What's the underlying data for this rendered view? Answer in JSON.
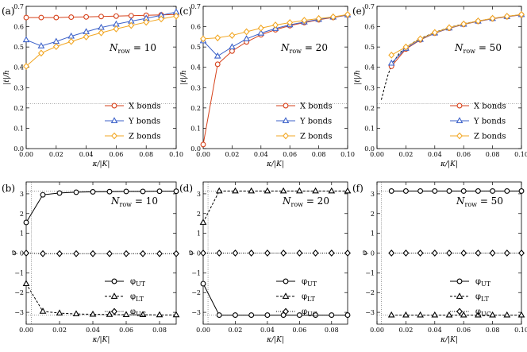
{
  "colors": {
    "x_bonds": "#d6421b",
    "y_bonds": "#3d62c9",
    "z_bonds": "#f2a724",
    "axis": "#000000"
  },
  "chart_data": [
    {
      "id": "a",
      "panel_label": "(a)",
      "type": "line",
      "xlabel": "κ/|K|",
      "ylabel": "|t|/h",
      "xlim": [
        0,
        0.1
      ],
      "ylim": [
        0,
        0.7
      ],
      "xticks": [
        0,
        0.02,
        0.04,
        0.06,
        0.08,
        0.1
      ],
      "xtick_labels": [
        "0.00",
        "0.02",
        "0.04",
        "0.06",
        "0.08",
        "0.10"
      ],
      "yticks": [
        0,
        0.1,
        0.2,
        0.3,
        0.4,
        0.5,
        0.6,
        0.7
      ],
      "ytick_labels": [
        "0.0",
        "0.1",
        "0.2",
        "0.3",
        "0.4",
        "0.5",
        "0.6",
        "0.7"
      ],
      "annotation": {
        "base": "N",
        "sub": "row",
        "rest": " = 10"
      },
      "hlines": [
        {
          "y": 0.22,
          "style": "dotted"
        }
      ],
      "legend": [
        "X bonds",
        "Y bonds",
        "Z bonds"
      ],
      "x": [
        0,
        0.01,
        0.02,
        0.03,
        0.04,
        0.05,
        0.06,
        0.07,
        0.08,
        0.09,
        0.1
      ],
      "series": [
        {
          "name": "X bonds",
          "marker": "circle",
          "color": "#d6421b",
          "values": [
            0.645,
            0.645,
            0.645,
            0.647,
            0.648,
            0.65,
            0.652,
            0.654,
            0.656,
            0.658,
            0.66
          ]
        },
        {
          "name": "Y bonds",
          "marker": "triangle",
          "color": "#3d62c9",
          "values": [
            0.535,
            0.505,
            0.527,
            0.553,
            0.575,
            0.596,
            0.612,
            0.627,
            0.641,
            0.656,
            0.672
          ]
        },
        {
          "name": "Z bonds",
          "marker": "diamond",
          "color": "#f2a724",
          "values": [
            0.405,
            0.47,
            0.502,
            0.527,
            0.55,
            0.57,
            0.589,
            0.606,
            0.622,
            0.638,
            0.652
          ]
        }
      ]
    },
    {
      "id": "c",
      "panel_label": "(c)",
      "type": "line",
      "xlabel": "κ/|K|",
      "ylabel": "|t|/h",
      "xlim": [
        0,
        0.1
      ],
      "ylim": [
        0,
        0.7
      ],
      "xticks": [
        0,
        0.02,
        0.04,
        0.06,
        0.08,
        0.1
      ],
      "xtick_labels": [
        "0.00",
        "0.02",
        "0.04",
        "0.06",
        "0.08",
        "0.10"
      ],
      "yticks": [
        0,
        0.1,
        0.2,
        0.3,
        0.4,
        0.5,
        0.6,
        0.7
      ],
      "ytick_labels": [
        "0.0",
        "0.1",
        "0.2",
        "0.3",
        "0.4",
        "0.5",
        "0.6",
        "0.7"
      ],
      "annotation": {
        "base": "N",
        "sub": "row",
        "rest": " = 20"
      },
      "hlines": [
        {
          "y": 0.22,
          "style": "dotted"
        }
      ],
      "legend": [
        "X bonds",
        "Y bonds",
        "Z bonds"
      ],
      "x": [
        0,
        0.01,
        0.02,
        0.03,
        0.04,
        0.05,
        0.06,
        0.07,
        0.08,
        0.09,
        0.1
      ],
      "series": [
        {
          "name": "X bonds",
          "marker": "circle",
          "color": "#d6421b",
          "values": [
            0.02,
            0.415,
            0.48,
            0.525,
            0.56,
            0.585,
            0.605,
            0.62,
            0.634,
            0.645,
            0.657
          ]
        },
        {
          "name": "Y bonds",
          "marker": "triangle",
          "color": "#3d62c9",
          "values": [
            0.53,
            0.455,
            0.5,
            0.54,
            0.568,
            0.591,
            0.609,
            0.623,
            0.636,
            0.647,
            0.658
          ]
        },
        {
          "name": "Z bonds",
          "marker": "diamond",
          "color": "#f2a724",
          "values": [
            0.54,
            0.545,
            0.557,
            0.575,
            0.593,
            0.608,
            0.62,
            0.631,
            0.64,
            0.648,
            0.66
          ]
        }
      ]
    },
    {
      "id": "e",
      "panel_label": "(e)",
      "type": "line",
      "xlabel": "κ/|K|",
      "ylabel": "|t|/h",
      "xlim": [
        0,
        0.1
      ],
      "ylim": [
        0,
        0.7
      ],
      "xticks": [
        0,
        0.02,
        0.04,
        0.06,
        0.08,
        0.1
      ],
      "xtick_labels": [
        "0.00",
        "0.02",
        "0.04",
        "0.06",
        "0.08",
        "0.10"
      ],
      "yticks": [
        0,
        0.1,
        0.2,
        0.3,
        0.4,
        0.5,
        0.6,
        0.7
      ],
      "ytick_labels": [
        "0.0",
        "0.1",
        "0.2",
        "0.3",
        "0.4",
        "0.5",
        "0.6",
        "0.7"
      ],
      "annotation": {
        "base": "N",
        "sub": "row",
        "rest": " = 50"
      },
      "hlines": [
        {
          "y": 0.22,
          "style": "dotted"
        }
      ],
      "legend": [
        "X bonds",
        "Y bonds",
        "Z bonds"
      ],
      "fit_curve": {
        "style": "dashed",
        "x": [
          0.003,
          0.005,
          0.0075,
          0.01,
          0.015,
          0.02,
          0.03,
          0.04,
          0.05,
          0.06,
          0.07,
          0.08,
          0.09,
          0.1
        ],
        "y": [
          0.24,
          0.295,
          0.36,
          0.41,
          0.465,
          0.5,
          0.542,
          0.572,
          0.596,
          0.614,
          0.628,
          0.64,
          0.65,
          0.66
        ]
      },
      "x": [
        0.01,
        0.02,
        0.03,
        0.04,
        0.05,
        0.06,
        0.07,
        0.08,
        0.09,
        0.1
      ],
      "series": [
        {
          "name": "X bonds",
          "marker": "circle",
          "color": "#d6421b",
          "values": [
            0.405,
            0.49,
            0.535,
            0.568,
            0.592,
            0.611,
            0.626,
            0.639,
            0.649,
            0.658
          ]
        },
        {
          "name": "Y bonds",
          "marker": "triangle",
          "color": "#3d62c9",
          "values": [
            0.42,
            0.493,
            0.537,
            0.569,
            0.593,
            0.612,
            0.627,
            0.64,
            0.65,
            0.659
          ]
        },
        {
          "name": "Z bonds",
          "marker": "diamond",
          "color": "#f2a724",
          "values": [
            0.46,
            0.5,
            0.54,
            0.571,
            0.595,
            0.613,
            0.628,
            0.641,
            0.651,
            0.66
          ]
        }
      ]
    },
    {
      "id": "b",
      "panel_label": "(b)",
      "type": "line",
      "xlabel": "κ/|K|",
      "ylabel": "φ",
      "xlim": [
        0,
        0.09
      ],
      "ylim": [
        -3.6,
        3.6
      ],
      "xticks": [
        0,
        0.02,
        0.04,
        0.06,
        0.08
      ],
      "xtick_labels": [
        "0.00",
        "0.02",
        "0.04",
        "0.06",
        "0.08"
      ],
      "yticks": [
        -3,
        -2,
        -1,
        0,
        1,
        2,
        3
      ],
      "ytick_labels": [
        "−3",
        "−2",
        "−1",
        "0",
        "1",
        "2",
        "3"
      ],
      "annotation": {
        "base": "N",
        "sub": "row",
        "rest": " = 10"
      },
      "hlines": [
        {
          "y": 3.14159,
          "style": "dotted"
        },
        {
          "y": -3.14159,
          "style": "dotted"
        }
      ],
      "vlines": [
        {
          "x": 0.003,
          "style": "dotted"
        }
      ],
      "legend": [
        "φUT",
        "φLT",
        "φUC"
      ],
      "x": [
        0,
        0.01,
        0.02,
        0.03,
        0.04,
        0.05,
        0.06,
        0.07,
        0.08,
        0.09
      ],
      "series": [
        {
          "name": "φUT",
          "marker": "circle",
          "line": "solid",
          "values": [
            1.55,
            2.95,
            3.04,
            3.08,
            3.1,
            3.11,
            3.12,
            3.12,
            3.13,
            3.13
          ]
        },
        {
          "name": "φLT",
          "marker": "triangle",
          "line": "dashed",
          "values": [
            -1.55,
            -2.95,
            -3.04,
            -3.08,
            -3.1,
            -3.11,
            -3.12,
            -3.12,
            -3.13,
            -3.13
          ]
        },
        {
          "name": "φUC",
          "marker": "diamond",
          "line": "dotted",
          "values": [
            0.0,
            -0.03,
            -0.03,
            -0.03,
            -0.03,
            -0.03,
            -0.03,
            -0.03,
            -0.03,
            -0.03
          ]
        }
      ]
    },
    {
      "id": "d",
      "panel_label": "(d)",
      "type": "line",
      "xlabel": "κ/|K|",
      "ylabel": "φ",
      "xlim": [
        0,
        0.09
      ],
      "ylim": [
        -3.6,
        3.6
      ],
      "xticks": [
        0,
        0.02,
        0.04,
        0.06,
        0.08
      ],
      "xtick_labels": [
        "0.00",
        "0.02",
        "0.04",
        "0.06",
        "0.08"
      ],
      "yticks": [
        -3,
        -2,
        -1,
        0,
        1,
        2,
        3
      ],
      "ytick_labels": [
        "−3",
        "−2",
        "−1",
        "0",
        "1",
        "2",
        "3"
      ],
      "annotation": {
        "base": "N",
        "sub": "row",
        "rest": " = 20"
      },
      "hlines": [
        {
          "y": 3.14159,
          "style": "dotted"
        },
        {
          "y": -3.14159,
          "style": "dotted"
        }
      ],
      "vlines": [
        {
          "x": 0.003,
          "style": "dotted"
        }
      ],
      "legend": [
        "φUT",
        "φLT",
        "φUC"
      ],
      "x": [
        0,
        0.01,
        0.02,
        0.03,
        0.04,
        0.05,
        0.06,
        0.07,
        0.08,
        0.09
      ],
      "series": [
        {
          "name": "φUT",
          "marker": "circle",
          "line": "solid",
          "values": [
            -1.55,
            -3.14,
            -3.14,
            -3.14,
            -3.14,
            -3.14,
            -3.14,
            -3.14,
            -3.14,
            -3.14
          ]
        },
        {
          "name": "φLT",
          "marker": "triangle",
          "line": "dashed",
          "values": [
            1.55,
            3.14,
            3.14,
            3.14,
            3.14,
            3.14,
            3.14,
            3.14,
            3.14,
            3.14
          ]
        },
        {
          "name": "φUC",
          "marker": "diamond",
          "line": "dotted",
          "values": [
            0,
            0,
            0,
            0,
            0,
            0,
            0,
            0,
            0,
            0
          ]
        }
      ]
    },
    {
      "id": "f",
      "panel_label": "(f)",
      "type": "line",
      "xlabel": "κ/|K|",
      "ylabel": "φ",
      "xlim": [
        0,
        0.1
      ],
      "ylim": [
        -3.6,
        3.6
      ],
      "xticks": [
        0,
        0.02,
        0.04,
        0.06,
        0.08,
        0.1
      ],
      "xtick_labels": [
        "0.00",
        "0.02",
        "0.04",
        "0.06",
        "0.08",
        "0.10"
      ],
      "yticks": [
        -3,
        -2,
        -1,
        0,
        1,
        2,
        3
      ],
      "ytick_labels": [
        "−3",
        "−2",
        "−1",
        "0",
        "1",
        "2",
        "3"
      ],
      "annotation": {
        "base": "N",
        "sub": "row",
        "rest": " = 50"
      },
      "hlines": [
        {
          "y": 3.14159,
          "style": "dotted"
        },
        {
          "y": -3.14159,
          "style": "dotted"
        }
      ],
      "vlines": [
        {
          "x": 0.003,
          "style": "dotted"
        }
      ],
      "legend": [
        "φUT",
        "φLT",
        "φUC"
      ],
      "x": [
        0.01,
        0.02,
        0.03,
        0.04,
        0.05,
        0.06,
        0.07,
        0.08,
        0.09,
        0.1
      ],
      "series": [
        {
          "name": "φUT",
          "marker": "circle",
          "line": "solid",
          "values": [
            3.14,
            3.14,
            3.14,
            3.14,
            3.14,
            3.14,
            3.14,
            3.14,
            3.14,
            3.14
          ]
        },
        {
          "name": "φLT",
          "marker": "triangle",
          "line": "dashed",
          "values": [
            -3.14,
            -3.14,
            -3.14,
            -3.14,
            -3.14,
            -3.14,
            -3.14,
            -3.14,
            -3.14,
            -3.14
          ]
        },
        {
          "name": "φUC",
          "marker": "diamond",
          "line": "dotted",
          "values": [
            0,
            0,
            0,
            0,
            0,
            0,
            0,
            0,
            0,
            0
          ]
        }
      ]
    }
  ]
}
